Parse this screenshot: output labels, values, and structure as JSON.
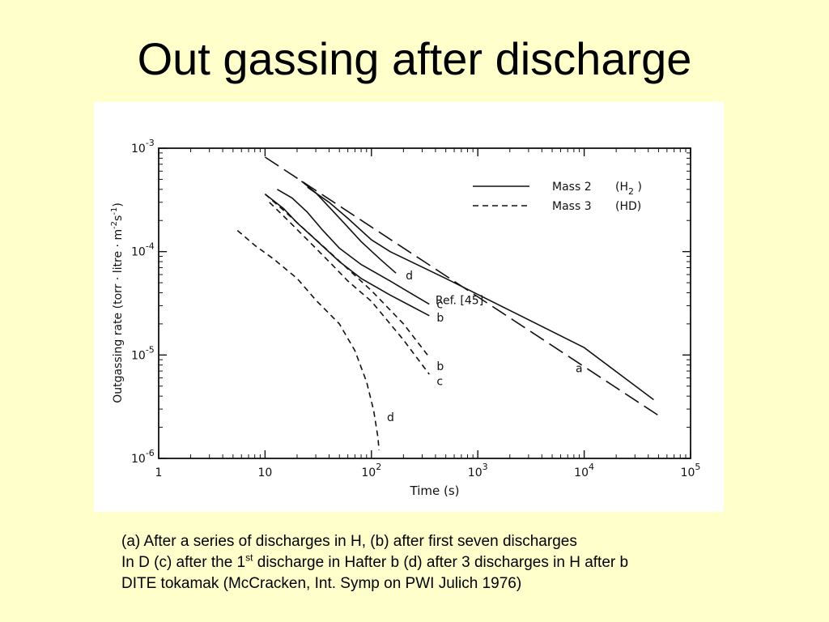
{
  "slide": {
    "title": "Out gassing after discharge",
    "caption_lines": [
      {
        "text": "(a) After a series of discharges in H, (b) after first seven discharges"
      },
      {
        "before": "In D (c) after the 1",
        "sup": "st",
        "after": " discharge in Hafter b (d) after 3 discharges in H after b"
      },
      {
        "text": "DITE tokamak  (McCracken,  Int. Symp on PWI Julich 1976)"
      }
    ]
  },
  "chart_data": {
    "type": "line",
    "xlabel": "Time (s)",
    "ylabel_parts": [
      "Outgassing rate (torr · litre · m",
      "-2",
      "s",
      "-1",
      ")"
    ],
    "x_scale": "log",
    "y_scale": "log",
    "xlim": [
      1,
      100000
    ],
    "ylim": [
      1e-06,
      0.001
    ],
    "x_ticks": [
      {
        "value": 1,
        "label": "1"
      },
      {
        "value": 10,
        "label": "10"
      },
      {
        "value": 100,
        "base": "10",
        "exp": "2"
      },
      {
        "value": 1000,
        "base": "10",
        "exp": "3"
      },
      {
        "value": 10000,
        "base": "10",
        "exp": "4"
      },
      {
        "value": 100000,
        "base": "10",
        "exp": "5"
      }
    ],
    "y_ticks": [
      {
        "value": 0.001,
        "base": "10",
        "exp": "-3"
      },
      {
        "value": 0.0001,
        "base": "10",
        "exp": "-4"
      },
      {
        "value": 1e-05,
        "base": "10",
        "exp": "-5"
      },
      {
        "value": 1e-06,
        "base": "10",
        "exp": "-6"
      }
    ],
    "legend": {
      "position": "top-right",
      "entries": [
        {
          "style": "solid",
          "label": "Mass 2",
          "species": "H",
          "sub": "2"
        },
        {
          "style": "dashed",
          "label": "Mass 3",
          "species": "HD",
          "sub": ""
        }
      ]
    },
    "series": [
      {
        "name": "Ref. [45]",
        "style": "longdash",
        "points": [
          [
            10,
            0.00082
          ],
          [
            50000,
            2.6e-06
          ]
        ],
        "label_at": [
          400,
          3.4e-05
        ]
      },
      {
        "name": "a",
        "style": "solid",
        "points": [
          [
            25,
            0.00042
          ],
          [
            40,
            0.0003
          ],
          [
            60,
            0.00021
          ],
          [
            100,
            0.00013
          ],
          [
            150,
            0.0001
          ],
          [
            500,
            5.5e-05
          ],
          [
            2000,
            2.7e-05
          ],
          [
            10000,
            1.18e-05
          ],
          [
            45000,
            3.7e-06
          ]
        ],
        "label_at": [
          8300,
          7.5e-06
        ]
      },
      {
        "name": "d",
        "style": "solid",
        "points": [
          [
            22,
            0.00048
          ],
          [
            30,
            0.00037
          ],
          [
            40,
            0.00027
          ],
          [
            55,
            0.00019
          ],
          [
            80,
            0.000125
          ],
          [
            120,
            8.5e-05
          ],
          [
            170,
            6.2e-05
          ]
        ],
        "label_at": [
          210,
          5.9e-05
        ]
      },
      {
        "name": "c",
        "style": "solid",
        "points": [
          [
            13,
            0.0004
          ],
          [
            18,
            0.00033
          ],
          [
            25,
            0.00024
          ],
          [
            35,
            0.00016
          ],
          [
            50,
            0.000108
          ],
          [
            80,
            7.5e-05
          ],
          [
            150,
            5.2e-05
          ],
          [
            250,
            3.8e-05
          ],
          [
            350,
            3.1e-05
          ]
        ],
        "label_at": [
          410,
          3.1e-05
        ]
      },
      {
        "name": "b",
        "style": "solid",
        "points": [
          [
            10,
            0.00036
          ],
          [
            15,
            0.00026
          ],
          [
            20,
            0.00019
          ],
          [
            30,
            0.00013
          ],
          [
            50,
            8e-05
          ],
          [
            80,
            5.5e-05
          ],
          [
            150,
            3.8e-05
          ],
          [
            350,
            2.4e-05
          ]
        ],
        "label_at": [
          410,
          2.3e-05
        ]
      },
      {
        "name": "b",
        "style": "dashed",
        "points": [
          [
            10,
            0.00036
          ],
          [
            15,
            0.00025
          ],
          [
            25,
            0.000155
          ],
          [
            40,
            0.0001
          ],
          [
            60,
            6.8e-05
          ],
          [
            100,
            4.2e-05
          ],
          [
            200,
            2e-05
          ],
          [
            350,
            9.5e-06
          ]
        ],
        "label_at": [
          410,
          7.8e-06
        ]
      },
      {
        "name": "c",
        "style": "dashed",
        "points": [
          [
            11,
            0.0003
          ],
          [
            15,
            0.00022
          ],
          [
            25,
            0.00013
          ],
          [
            40,
            8e-05
          ],
          [
            60,
            5.2e-05
          ],
          [
            100,
            3.3e-05
          ],
          [
            200,
            1.4e-05
          ],
          [
            350,
            6.5e-06
          ]
        ],
        "label_at": [
          410,
          5.6e-06
        ]
      },
      {
        "name": "d",
        "style": "dashed",
        "points": [
          [
            5.5,
            0.00016
          ],
          [
            8,
            0.000115
          ],
          [
            12,
            8.5e-05
          ],
          [
            20,
            5.5e-05
          ],
          [
            30,
            3.4e-05
          ],
          [
            50,
            2e-05
          ],
          [
            70,
            1.1e-05
          ],
          [
            90,
            5.5e-06
          ],
          [
            105,
            2.9e-06
          ],
          [
            115,
            1.6e-06
          ],
          [
            118,
            1.2e-06
          ]
        ],
        "label_at": [
          140,
          2.5e-06
        ]
      }
    ]
  }
}
